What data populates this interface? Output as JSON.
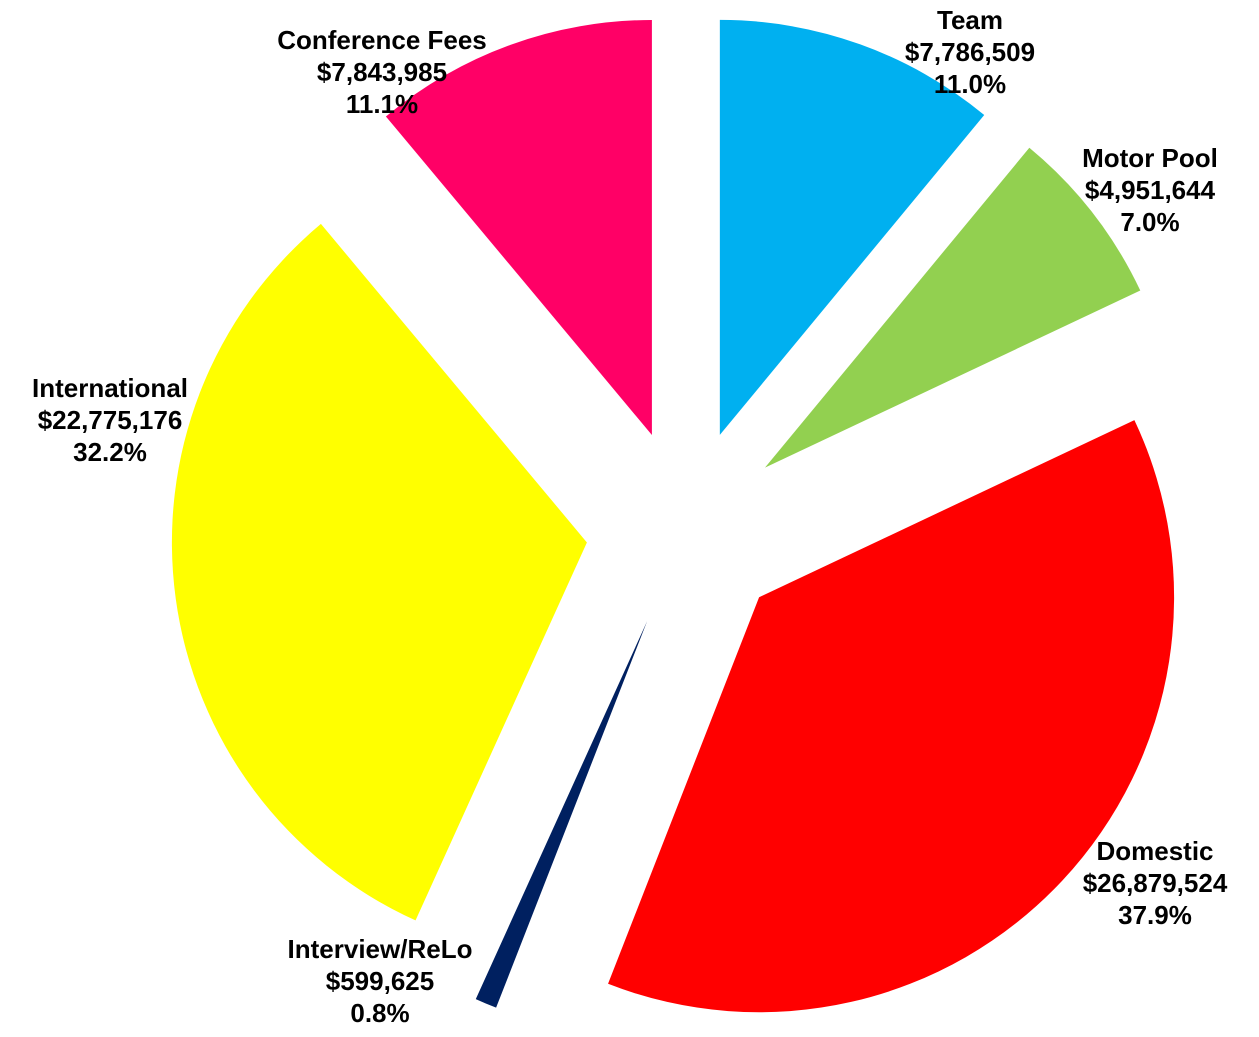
{
  "chart_data": {
    "type": "pie",
    "categories": [
      "Team",
      "Motor Pool",
      "Domestic",
      "Interview/ReLo",
      "International",
      "Conference Fees"
    ],
    "values": [
      7786509,
      4951644,
      26879524,
      599625,
      22775176,
      7843985
    ],
    "value_labels": [
      "$7,786,509",
      "$4,951,644",
      "$26,879,524",
      "$599,625",
      "$22,775,176",
      "$7,843,985"
    ],
    "percent_labels": [
      "11.0%",
      "7.0%",
      "37.9%",
      "0.8%",
      "32.2%",
      "11.1%"
    ],
    "colors": [
      "#00b0f0",
      "#92d050",
      "#ff0000",
      "#002060",
      "#ffff00",
      "#ff0066"
    ]
  }
}
